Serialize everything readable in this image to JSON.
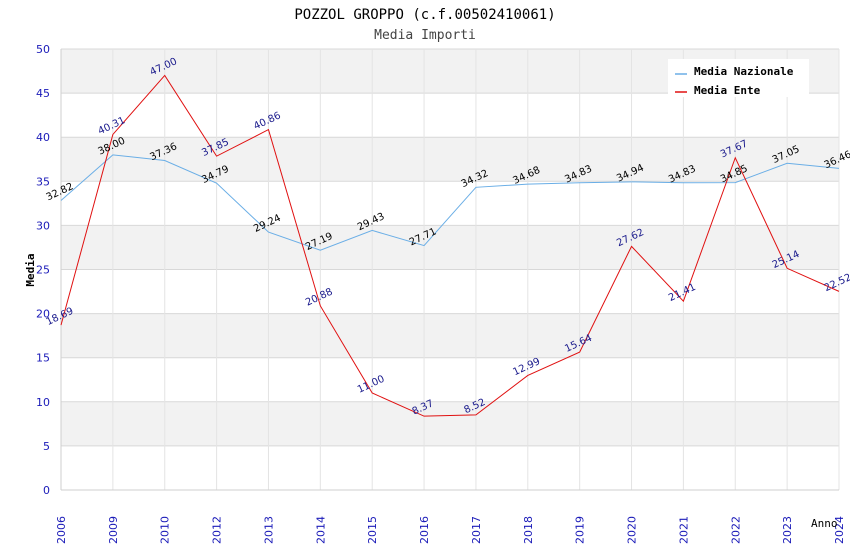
{
  "chart_data": {
    "type": "line",
    "title": "POZZOL GROPPO (c.f.00502410061)",
    "subtitle": "Media Importi",
    "xlabel": "Anno",
    "ylabel": "Media",
    "ylim": [
      0,
      50
    ],
    "yticks": [
      0,
      5,
      10,
      15,
      20,
      25,
      30,
      35,
      40,
      45,
      50
    ],
    "categories": [
      "2006",
      "2009",
      "2010",
      "2012",
      "2013",
      "2014",
      "2015",
      "2016",
      "2017",
      "2018",
      "2019",
      "2020",
      "2021",
      "2022",
      "2023",
      "2024"
    ],
    "legend_position": "top-right",
    "series": [
      {
        "name": "Media Nazionale",
        "color": "#6aaee6",
        "label_color": "#000000",
        "values": [
          32.82,
          38.0,
          37.36,
          34.79,
          29.24,
          27.19,
          29.43,
          27.71,
          34.32,
          34.68,
          34.83,
          34.94,
          34.83,
          34.85,
          37.05,
          36.46
        ],
        "labels": [
          "32.82",
          "38.00",
          "37.36",
          "34.79",
          "29.24",
          "27.19",
          "29.43",
          "27.71",
          "34.32",
          "34.68",
          "34.83",
          "34.94",
          "34.83",
          "34.85",
          "37.05",
          "36.46"
        ]
      },
      {
        "name": "Media Ente",
        "color": "#e01010",
        "label_color": "#1a1a8c",
        "values": [
          18.69,
          40.31,
          47.0,
          37.85,
          40.86,
          20.88,
          11.0,
          8.37,
          8.52,
          12.99,
          15.64,
          27.62,
          21.41,
          37.67,
          25.14,
          22.52
        ],
        "labels": [
          "18.69",
          "40.31",
          "47.00",
          "37.85",
          "40.86",
          "20.88",
          "11.00",
          "8.37",
          "8.52",
          "12.99",
          "15.64",
          "27.62",
          "21.41",
          "37.67",
          "25.14",
          "22.52"
        ]
      }
    ]
  }
}
